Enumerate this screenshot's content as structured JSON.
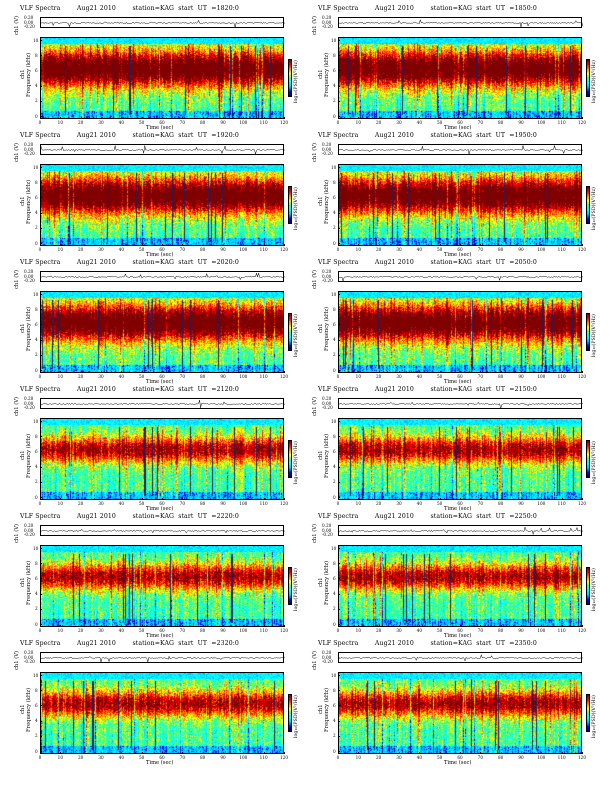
{
  "figure": {
    "header": {
      "left": "VLF Spectra",
      "date": "Aug21 2010",
      "station": "station=KAG"
    },
    "ylabel_top": "ch1 (V)",
    "ylabel_spec_channel": "ch1",
    "ylabel_spec": "Frequency  (kHz)",
    "xlabel": "Time  (sec)",
    "cbar_label": "log₁₀(PSD)(V²/Hz)",
    "trace_ticks": [
      "0.20",
      "0.00",
      "-0.20"
    ],
    "freq_ticks": [
      "0",
      "2",
      "4",
      "6",
      "8",
      "10"
    ],
    "time_ticks": [
      "0",
      "10",
      "20",
      "30",
      "40",
      "50",
      "60",
      "70",
      "80",
      "90",
      "100",
      "110",
      "120"
    ],
    "colormap": [
      "#000080",
      "#0000ff",
      "#00bfff",
      "#00ffff",
      "#40ff80",
      "#ffff00",
      "#ff8000",
      "#ff0000",
      "#800000"
    ]
  },
  "chart_data": [
    {
      "type": "heatmap",
      "title": "VLF Spectra        Aug21 2010        station=KAG  start  UT  =1820:0",
      "start_ut": "=1820:0",
      "xlim": [
        0,
        120
      ],
      "ylim": [
        0,
        10
      ],
      "xlabel": "Time  (sec)",
      "ylabel": "Frequency  (kHz)"
    },
    {
      "type": "heatmap",
      "title": "VLF Spectra        Aug21 2010        station=KAG  start  UT  =1850:0",
      "start_ut": "=1850:0",
      "xlim": [
        0,
        120
      ],
      "ylim": [
        0,
        10
      ],
      "xlabel": "Time  (sec)",
      "ylabel": "Frequency  (kHz)"
    },
    {
      "type": "heatmap",
      "title": "VLF Spectra        Aug21 2010        station=KAG  start  UT  =1920:0",
      "start_ut": "=1920:0",
      "xlim": [
        0,
        120
      ],
      "ylim": [
        0,
        10
      ],
      "xlabel": "Time  (sec)",
      "ylabel": "Frequency  (kHz)"
    },
    {
      "type": "heatmap",
      "title": "VLF Spectra        Aug21 2010        station=KAG  start  UT  =1950:0",
      "start_ut": "=1950:0",
      "xlim": [
        0,
        120
      ],
      "ylim": [
        0,
        10
      ],
      "xlabel": "Time  (sec)",
      "ylabel": "Frequency  (kHz)"
    },
    {
      "type": "heatmap",
      "title": "VLF Spectra        Aug21 2010        station=KAG  start  UT  =2020:0",
      "start_ut": "=2020:0",
      "xlim": [
        0,
        120
      ],
      "ylim": [
        0,
        10
      ],
      "xlabel": "Time  (sec)",
      "ylabel": "Frequency  (kHz)"
    },
    {
      "type": "heatmap",
      "title": "VLF Spectra        Aug21 2010        station=KAG  start  UT  =2050:0",
      "start_ut": "=2050:0",
      "xlim": [
        0,
        120
      ],
      "ylim": [
        0,
        10
      ],
      "xlabel": "Time  (sec)",
      "ylabel": "Frequency  (kHz)"
    },
    {
      "type": "heatmap",
      "title": "VLF Spectra        Aug21 2010        station=KAG  start  UT  =2120:0",
      "start_ut": "=2120:0",
      "xlim": [
        0,
        120
      ],
      "ylim": [
        0,
        10
      ],
      "xlabel": "Time  (sec)",
      "ylabel": "Frequency  (kHz)"
    },
    {
      "type": "heatmap",
      "title": "VLF Spectra        Aug21 2010        station=KAG  start  UT  =2150:0",
      "start_ut": "=2150:0",
      "xlim": [
        0,
        120
      ],
      "ylim": [
        0,
        10
      ],
      "xlabel": "Time  (sec)",
      "ylabel": "Frequency  (kHz)"
    },
    {
      "type": "heatmap",
      "title": "VLF Spectra        Aug21 2010        station=KAG  start  UT  =2220:0",
      "start_ut": "=2220:0",
      "xlim": [
        0,
        120
      ],
      "ylim": [
        0,
        10
      ],
      "xlabel": "Time  (sec)",
      "ylabel": "Frequency  (kHz)"
    },
    {
      "type": "heatmap",
      "title": "VLF Spectra        Aug21 2010        station=KAG  start  UT  =2250:0",
      "start_ut": "=2250:0",
      "xlim": [
        0,
        120
      ],
      "ylim": [
        0,
        10
      ],
      "xlabel": "Time  (sec)",
      "ylabel": "Frequency  (kHz)"
    },
    {
      "type": "heatmap",
      "title": "VLF Spectra        Aug21 2010        station=KAG  start  UT  =2320:0",
      "start_ut": "=2320:0",
      "xlim": [
        0,
        120
      ],
      "ylim": [
        0,
        10
      ],
      "xlabel": "Time  (sec)",
      "ylabel": "Frequency  (kHz)"
    },
    {
      "type": "heatmap",
      "title": "VLF Spectra        Aug21 2010        station=KAG  start  UT  =2350:0",
      "start_ut": "=2350:0",
      "xlim": [
        0,
        120
      ],
      "ylim": [
        0,
        10
      ],
      "xlabel": "Time  (sec)",
      "ylabel": "Frequency  (kHz)"
    }
  ]
}
